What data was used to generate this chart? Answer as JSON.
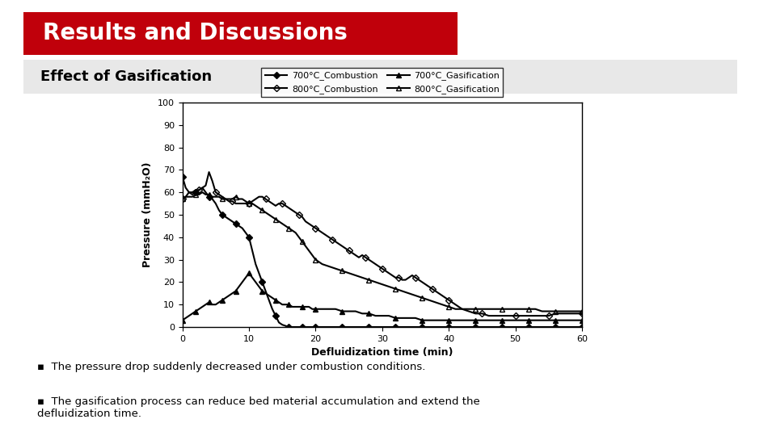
{
  "title": "Results and Discussions",
  "subtitle": "Effect of Gasification",
  "xlabel": "Defluidization time (min)",
  "ylabel": "Pressure (mmH₂O)",
  "xlim": [
    0,
    60
  ],
  "ylim": [
    0,
    100
  ],
  "xticks": [
    0,
    10,
    20,
    30,
    40,
    50,
    60
  ],
  "yticks": [
    0,
    10,
    20,
    30,
    40,
    50,
    60,
    70,
    80,
    90,
    100
  ],
  "bg_color": "#ffffff",
  "slide_border_color": "#1a1a6e",
  "title_bg_color": "#c0000b",
  "title_text_color": "#ffffff",
  "subtitle_bg_color": "#e8e8e8",
  "subtitle_text_color": "#000000",
  "bullet_text": [
    "The pressure drop suddenly decreased under combustion conditions.",
    "The gasification process can reduce bed material accumulation and extend the\ndefluidization time."
  ],
  "legend_labels": [
    "700°C_Combustion",
    "800°C_Combustion",
    "700°C_Gasification",
    "800°C_Gasification"
  ],
  "series": {
    "700C_Combustion": {
      "x": [
        0,
        0.5,
        1,
        1.5,
        2,
        2.5,
        3,
        3.5,
        4,
        4.5,
        5,
        5.5,
        6,
        6.5,
        7,
        7.5,
        8,
        8.5,
        9,
        9.5,
        10,
        10.5,
        11,
        11.5,
        12,
        12.5,
        13,
        13.5,
        14,
        14.5,
        15,
        15.5,
        16,
        16.5,
        17,
        17.5,
        18,
        18.5,
        19,
        19.5,
        20,
        21,
        22,
        23,
        24,
        25,
        26,
        27,
        28,
        29,
        30,
        31,
        32,
        33,
        34,
        35,
        36,
        37,
        38,
        39,
        40,
        41,
        42,
        43,
        44,
        45,
        46,
        47,
        48,
        49,
        50,
        51,
        52,
        53,
        54,
        55,
        56,
        57,
        58,
        59,
        60
      ],
      "y": [
        67,
        62,
        60,
        59,
        60,
        61,
        62,
        60,
        58,
        57,
        55,
        52,
        50,
        49,
        48,
        47,
        46,
        45,
        44,
        42,
        40,
        34,
        28,
        24,
        20,
        16,
        12,
        8,
        5,
        2,
        1,
        0.5,
        0,
        0,
        0,
        0,
        0,
        0,
        0,
        0,
        0,
        0,
        0,
        0,
        0,
        0,
        0,
        0,
        0,
        0,
        0,
        0,
        0,
        0,
        0,
        0,
        0,
        0,
        0,
        0,
        0,
        0,
        0,
        0,
        0,
        0,
        0,
        0,
        0,
        0,
        0,
        0,
        0,
        0,
        0,
        0,
        0,
        0,
        0,
        0,
        0
      ],
      "marker": "D",
      "color": "#000000",
      "linewidth": 1.5,
      "markersize": 4,
      "fillstyle": "full"
    },
    "800C_Combustion": {
      "x": [
        0,
        0.5,
        1,
        1.5,
        2,
        2.5,
        3,
        3.5,
        4,
        4.5,
        5,
        5.5,
        6,
        6.5,
        7,
        7.5,
        8,
        8.5,
        9,
        9.5,
        10,
        10.5,
        11,
        11.5,
        12,
        12.5,
        13,
        13.5,
        14,
        14.5,
        15,
        15.5,
        16,
        16.5,
        17,
        17.5,
        18,
        18.5,
        19,
        19.5,
        20,
        20.5,
        21,
        21.5,
        22,
        22.5,
        23,
        23.5,
        24,
        24.5,
        25,
        25.5,
        26,
        26.5,
        27,
        27.5,
        28,
        28.5,
        29,
        29.5,
        30,
        30.5,
        31,
        31.5,
        32,
        32.5,
        33,
        33.5,
        34,
        34.5,
        35,
        35.5,
        36,
        36.5,
        37,
        37.5,
        38,
        38.5,
        39,
        39.5,
        40,
        41,
        42,
        43,
        44,
        45,
        46,
        47,
        48,
        49,
        50,
        51,
        52,
        53,
        54,
        55,
        56,
        57,
        58,
        59,
        60
      ],
      "y": [
        57,
        58,
        60,
        60,
        61,
        61,
        62,
        63,
        69,
        65,
        60,
        59,
        58,
        57,
        56,
        56,
        55,
        55,
        55,
        55,
        55,
        56,
        57,
        58,
        58,
        57,
        56,
        55,
        54,
        55,
        55,
        54,
        53,
        52,
        51,
        50,
        49,
        47,
        46,
        45,
        44,
        43,
        42,
        41,
        40,
        39,
        38,
        37,
        36,
        35,
        34,
        33,
        32,
        31,
        32,
        31,
        30,
        29,
        28,
        27,
        26,
        25,
        24,
        23,
        22,
        22,
        21,
        21,
        22,
        23,
        22,
        21,
        20,
        19,
        18,
        17,
        16,
        15,
        14,
        13,
        12,
        10,
        8,
        7,
        6,
        6,
        5,
        5,
        5,
        5,
        5,
        5,
        5,
        5,
        5,
        5,
        6,
        6,
        6,
        6,
        6
      ],
      "marker": "D",
      "color": "#000000",
      "linewidth": 1.5,
      "markersize": 4,
      "fillstyle": "none"
    },
    "700C_Gasification": {
      "x": [
        0,
        0.5,
        1,
        1.5,
        2,
        2.5,
        3,
        3.5,
        4,
        4.5,
        5,
        5.5,
        6,
        6.5,
        7,
        7.5,
        8,
        8.5,
        9,
        9.5,
        10,
        10.5,
        11,
        11.5,
        12,
        12.5,
        13,
        13.5,
        14,
        14.5,
        15,
        15.5,
        16,
        16.5,
        17,
        17.5,
        18,
        18.5,
        19,
        19.5,
        20,
        21,
        22,
        23,
        24,
        25,
        26,
        27,
        28,
        29,
        30,
        31,
        32,
        33,
        34,
        35,
        36,
        37,
        38,
        39,
        40,
        41,
        42,
        43,
        44,
        45,
        46,
        47,
        48,
        49,
        50,
        51,
        52,
        53,
        54,
        55,
        56,
        57,
        58,
        59,
        60
      ],
      "y": [
        3,
        4,
        5,
        6,
        7,
        8,
        9,
        10,
        11,
        10,
        10,
        11,
        12,
        13,
        14,
        15,
        16,
        18,
        20,
        22,
        24,
        22,
        20,
        18,
        16,
        15,
        14,
        13,
        12,
        11,
        10,
        10,
        10,
        9,
        9,
        9,
        9,
        9,
        9,
        8,
        8,
        8,
        8,
        8,
        7,
        7,
        7,
        6,
        6,
        5,
        5,
        5,
        4,
        4,
        4,
        4,
        3,
        3,
        3,
        3,
        3,
        3,
        3,
        3,
        3,
        3,
        3,
        3,
        3,
        3,
        3,
        3,
        3,
        3,
        3,
        3,
        3,
        3,
        3,
        3,
        3
      ],
      "marker": "^",
      "color": "#000000",
      "linewidth": 1.5,
      "markersize": 4,
      "fillstyle": "full"
    },
    "800C_Gasification": {
      "x": [
        0,
        0.5,
        1,
        1.5,
        2,
        2.5,
        3,
        3.5,
        4,
        4.5,
        5,
        5.5,
        6,
        6.5,
        7,
        7.5,
        8,
        8.5,
        9,
        9.5,
        10,
        10.5,
        11,
        11.5,
        12,
        12.5,
        13,
        13.5,
        14,
        14.5,
        15,
        15.5,
        16,
        16.5,
        17,
        17.5,
        18,
        18.5,
        19,
        19.5,
        20,
        21,
        22,
        23,
        24,
        25,
        26,
        27,
        28,
        29,
        30,
        31,
        32,
        33,
        34,
        35,
        36,
        37,
        38,
        39,
        40,
        41,
        42,
        43,
        44,
        45,
        46,
        47,
        48,
        49,
        50,
        51,
        52,
        53,
        54,
        55,
        56,
        57,
        58,
        59,
        60
      ],
      "y": [
        57,
        58,
        58,
        58,
        59,
        59,
        60,
        59,
        59,
        58,
        58,
        58,
        57,
        57,
        57,
        57,
        58,
        57,
        57,
        56,
        55,
        55,
        54,
        53,
        52,
        51,
        50,
        49,
        48,
        47,
        46,
        45,
        44,
        43,
        42,
        40,
        38,
        36,
        34,
        32,
        30,
        28,
        27,
        26,
        25,
        24,
        23,
        22,
        21,
        20,
        19,
        18,
        17,
        16,
        15,
        14,
        13,
        12,
        11,
        10,
        9,
        8,
        8,
        8,
        8,
        8,
        8,
        8,
        8,
        8,
        8,
        8,
        8,
        8,
        7,
        7,
        7,
        7,
        7,
        7,
        7
      ],
      "marker": "^",
      "color": "#000000",
      "linewidth": 1.5,
      "markersize": 4,
      "fillstyle": "none"
    }
  }
}
